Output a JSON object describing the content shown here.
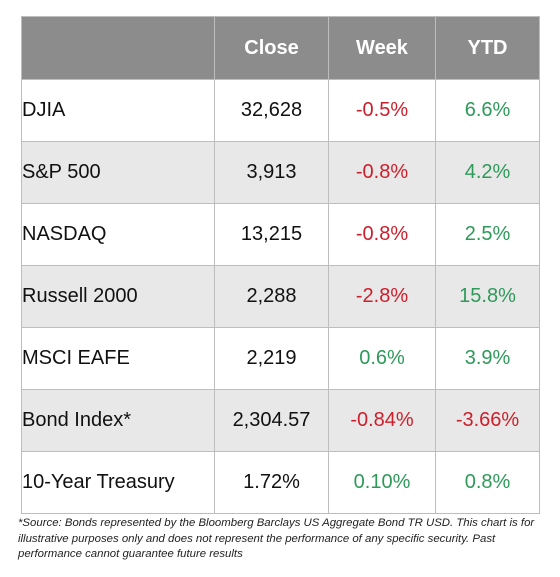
{
  "headers": [
    "",
    "Close",
    "Week",
    "YTD"
  ],
  "rows": [
    {
      "name": "DJIA",
      "close": "32,628",
      "week": "-0.5%",
      "ytd": "6.6%"
    },
    {
      "name": "S&P 500",
      "close": "3,913",
      "week": "-0.8%",
      "ytd": "4.2%"
    },
    {
      "name": "NASDAQ",
      "close": "13,215",
      "week": "-0.8%",
      "ytd": "2.5%"
    },
    {
      "name": "Russell 2000",
      "close": "2,288",
      "week": "-2.8%",
      "ytd": "15.8%"
    },
    {
      "name": "MSCI EAFE",
      "close": "2,219",
      "week": "0.6%",
      "ytd": "3.9%"
    },
    {
      "name": "Bond Index*",
      "close": "2,304.57",
      "week": "-0.84%",
      "ytd": "-3.66%"
    },
    {
      "name": "10-Year Treasury",
      "close": "1.72%",
      "week": "0.10%",
      "ytd": "0.8%"
    }
  ],
  "footnote": "*Source: Bonds represented by the Bloomberg Barclays US Aggregate Bond TR USD.  This chart is for illustrative purposes only and does not represent the performance of any specific security. Past performance cannot guarantee future results",
  "colors": {
    "header_bg": "#8c8c8c",
    "shaded_row": "#e8e8e8",
    "negative": "#cc1f2b",
    "positive": "#2e9a5a"
  }
}
